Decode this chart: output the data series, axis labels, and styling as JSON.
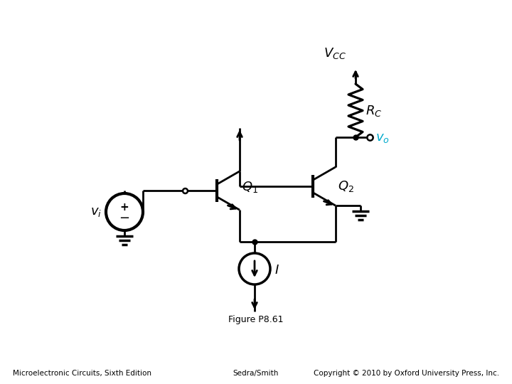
{
  "title": "Figure P8.61",
  "footer_left": "Microelectronic Circuits, Sixth Edition",
  "footer_center": "Sedra/Smith",
  "footer_right": "Copyright © 2010 by Oxford University Press, Inc.",
  "vo_color": "#00aacc",
  "black": "#000000",
  "white": "#ffffff",
  "bg_color": "#ffffff",
  "lw": 2.0
}
